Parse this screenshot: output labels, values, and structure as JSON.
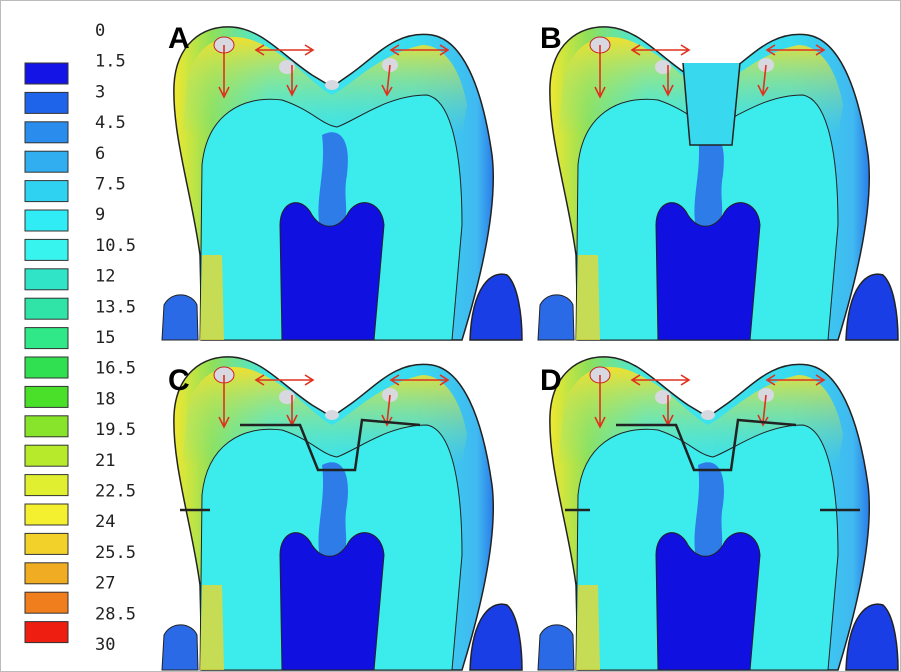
{
  "legend": {
    "labels": [
      "0",
      "1.5",
      "3",
      "4.5",
      "6",
      "7.5",
      "9",
      "10.5",
      "12",
      "13.5",
      "15",
      "16.5",
      "18",
      "19.5",
      "21",
      "22.5",
      "24",
      "25.5",
      "27",
      "28.5",
      "30"
    ],
    "colors": [
      "#1414e6",
      "#1e64ea",
      "#2a8cec",
      "#30aef0",
      "#30d2f2",
      "#30ecf4",
      "#38f4ee",
      "#30e4c8",
      "#30e4a8",
      "#30e888",
      "#30e050",
      "#4ae02a",
      "#88e42a",
      "#b8ea2c",
      "#e0f030",
      "#f4f030",
      "#f2d22a",
      "#f0ac22",
      "#f07e1c",
      "#ee1e10"
    ]
  },
  "panels": [
    {
      "label": "A"
    },
    {
      "label": "B"
    },
    {
      "label": "C"
    },
    {
      "label": "D"
    }
  ]
}
